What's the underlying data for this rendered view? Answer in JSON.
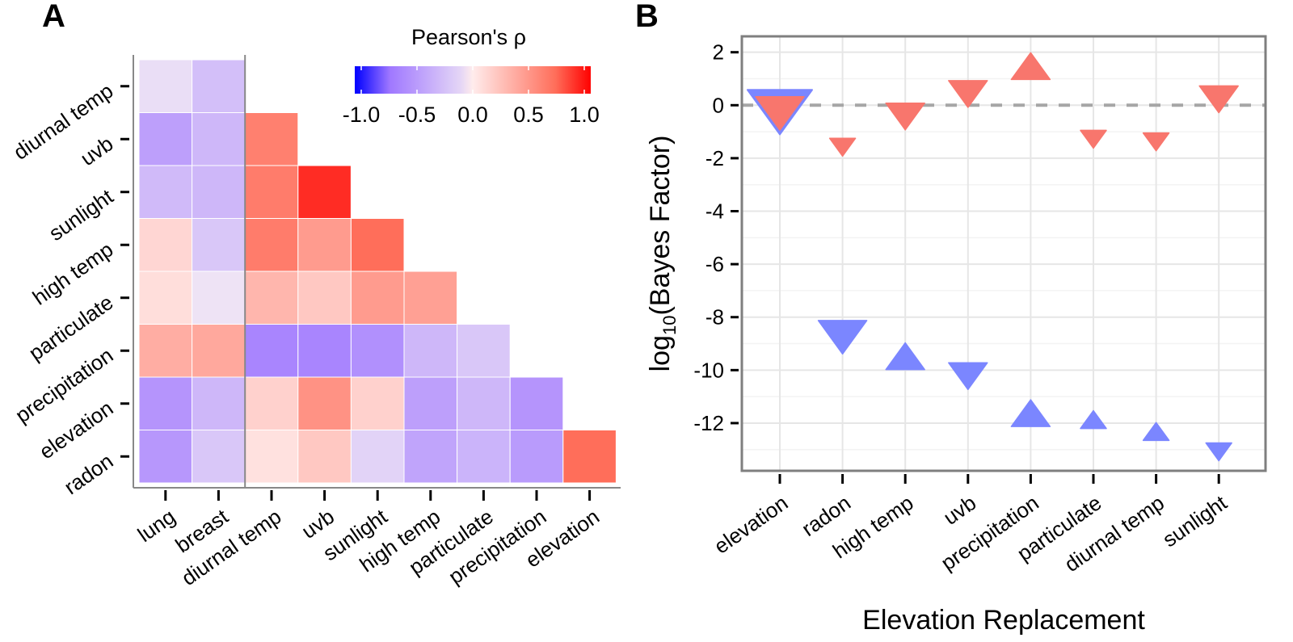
{
  "chart_data": [
    {
      "panel": "A",
      "type": "heatmap",
      "title": "",
      "legend": {
        "title": "Pearson's ρ",
        "ticks": [
          "-1.0",
          "-0.5",
          "0.0",
          "0.5",
          "1.0"
        ],
        "range": [
          -1.0,
          1.0
        ],
        "colors": {
          "low": "#0000FF",
          "mid": "#F0E6F5",
          "high": "#FF0000"
        },
        "placement": "top-right"
      },
      "rows": [
        "diurnal temp",
        "uvb",
        "sunlight",
        "high temp",
        "particulate",
        "precipitation",
        "elevation",
        "radon"
      ],
      "columns": [
        "lung",
        "breast",
        "diurnal temp",
        "uvb",
        "sunlight",
        "high temp",
        "particulate",
        "precipitation",
        "elevation"
      ],
      "values": [
        [
          -0.05,
          -0.25,
          null,
          null,
          null,
          null,
          null,
          null,
          null
        ],
        [
          -0.45,
          -0.3,
          0.6,
          null,
          null,
          null,
          null,
          null,
          null
        ],
        [
          -0.28,
          -0.3,
          0.62,
          0.88,
          null,
          null,
          null,
          null,
          null
        ],
        [
          0.12,
          -0.2,
          0.62,
          0.45,
          0.7,
          null,
          null,
          null,
          null
        ],
        [
          0.08,
          -0.02,
          0.3,
          0.2,
          0.45,
          0.42,
          null,
          null,
          null
        ],
        [
          0.35,
          0.38,
          -0.62,
          -0.62,
          -0.55,
          -0.3,
          -0.2,
          null,
          null
        ],
        [
          -0.52,
          -0.3,
          0.15,
          0.5,
          0.15,
          -0.45,
          -0.3,
          -0.52,
          null
        ],
        [
          -0.5,
          -0.2,
          0.06,
          0.2,
          -0.12,
          -0.42,
          -0.32,
          -0.48,
          0.7
        ]
      ]
    },
    {
      "panel": "B",
      "type": "scatter",
      "title": "",
      "xlabel": "Elevation Replacement",
      "ylabel": "log10(Bayes Factor)",
      "ylabel_parts": {
        "pre": "log",
        "sub": "10",
        "post": "(Bayes Factor)"
      },
      "ylim": [
        -13.8,
        2.6
      ],
      "yticks": [
        2,
        0,
        -2,
        -4,
        -6,
        -8,
        -10,
        -12
      ],
      "reference_line": {
        "y": 0,
        "style": "dashed"
      },
      "grid": true,
      "categories": [
        "elevation",
        "radon",
        "high temp",
        "uvb",
        "precipitation",
        "particulate",
        "diurnal temp",
        "sunlight"
      ],
      "series": [
        {
          "name": "red",
          "color": "#F8766D",
          "values": [
            -0.15,
            -1.5,
            -0.3,
            0.55,
            1.35,
            -1.2,
            -1.3,
            0.35
          ],
          "direction": [
            "down",
            "down",
            "down",
            "down",
            "up",
            "down",
            "down",
            "down"
          ],
          "size": [
            "large",
            "small",
            "medium",
            "medium",
            "medium",
            "small",
            "small",
            "medium"
          ]
        },
        {
          "name": "blue",
          "color": "#7B86FF",
          "values": [
            -0.05,
            -8.6,
            -9.6,
            -10.1,
            -11.75,
            -11.95,
            -12.4,
            -13.0
          ],
          "direction": [
            "down",
            "down",
            "up",
            "down",
            "up",
            "up",
            "up",
            "down"
          ],
          "size": [
            "xlarge",
            "large",
            "medium",
            "medium",
            "medium",
            "small",
            "small",
            "small"
          ],
          "outline_only": [
            true,
            false,
            false,
            false,
            false,
            false,
            false,
            false
          ]
        }
      ]
    }
  ],
  "labels": {
    "panel_a": "A",
    "panel_b": "B"
  }
}
